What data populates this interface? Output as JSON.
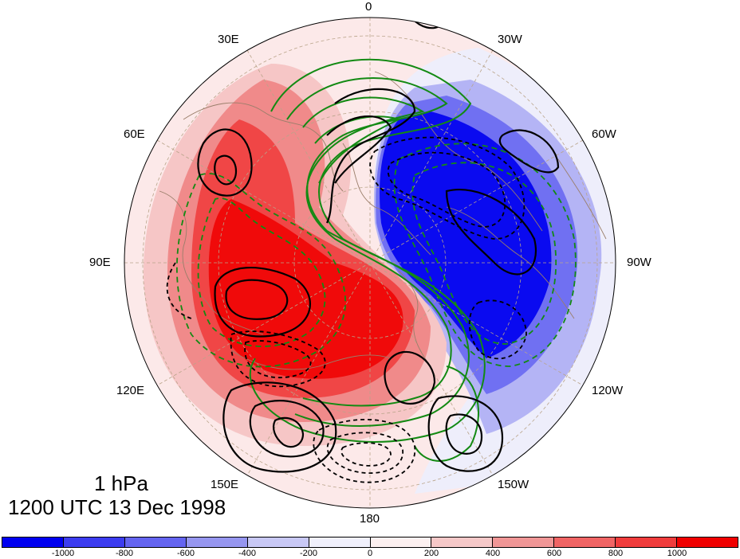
{
  "map": {
    "projection": "north polar stereographic",
    "longitude_labels": [
      {
        "text": "0"
      },
      {
        "text": "30W"
      },
      {
        "text": "60W"
      },
      {
        "text": "90W"
      },
      {
        "text": "120W"
      },
      {
        "text": "150W"
      },
      {
        "text": "180"
      },
      {
        "text": "150E"
      },
      {
        "text": "120E"
      },
      {
        "text": "90E"
      },
      {
        "text": "60E"
      },
      {
        "text": "30E"
      }
    ],
    "shading": "positive anomaly shown in red shades, negative in blue shades",
    "contours": {
      "black_solid": "positive contours",
      "black_dashed": "negative contours",
      "green_solid": "positive contours",
      "green_dashed": "negative contours"
    }
  },
  "caption": {
    "level": "1 hPa",
    "time": "1200 UTC 13 Dec 1998"
  },
  "colorbar": {
    "colors": [
      "#0000f0",
      "#3c3cf0",
      "#6464f0",
      "#9696f0",
      "#c8c8f5",
      "#f0f0fc",
      "#fcf0f0",
      "#f5c8c8",
      "#f09696",
      "#f06464",
      "#f03c3c",
      "#f00000"
    ],
    "tick_labels": [
      "-1000",
      "-800",
      "-600",
      "-400",
      "-200",
      "0",
      "200",
      "400",
      "600",
      "800",
      "1000"
    ]
  }
}
